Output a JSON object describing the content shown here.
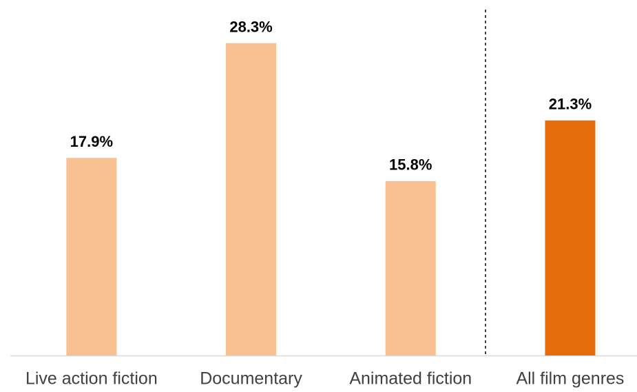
{
  "chart_data": {
    "type": "bar",
    "categories": [
      "Live action fiction",
      "Documentary",
      "Animated fiction",
      "All film genres"
    ],
    "values": [
      17.9,
      28.3,
      15.8,
      21.3
    ],
    "value_labels": [
      "17.9%",
      "28.3%",
      "15.8%",
      "21.3%"
    ],
    "colors": [
      "#f9c091",
      "#f9c091",
      "#f9c091",
      "#e46c0a"
    ],
    "ylim": [
      0,
      30
    ]
  }
}
